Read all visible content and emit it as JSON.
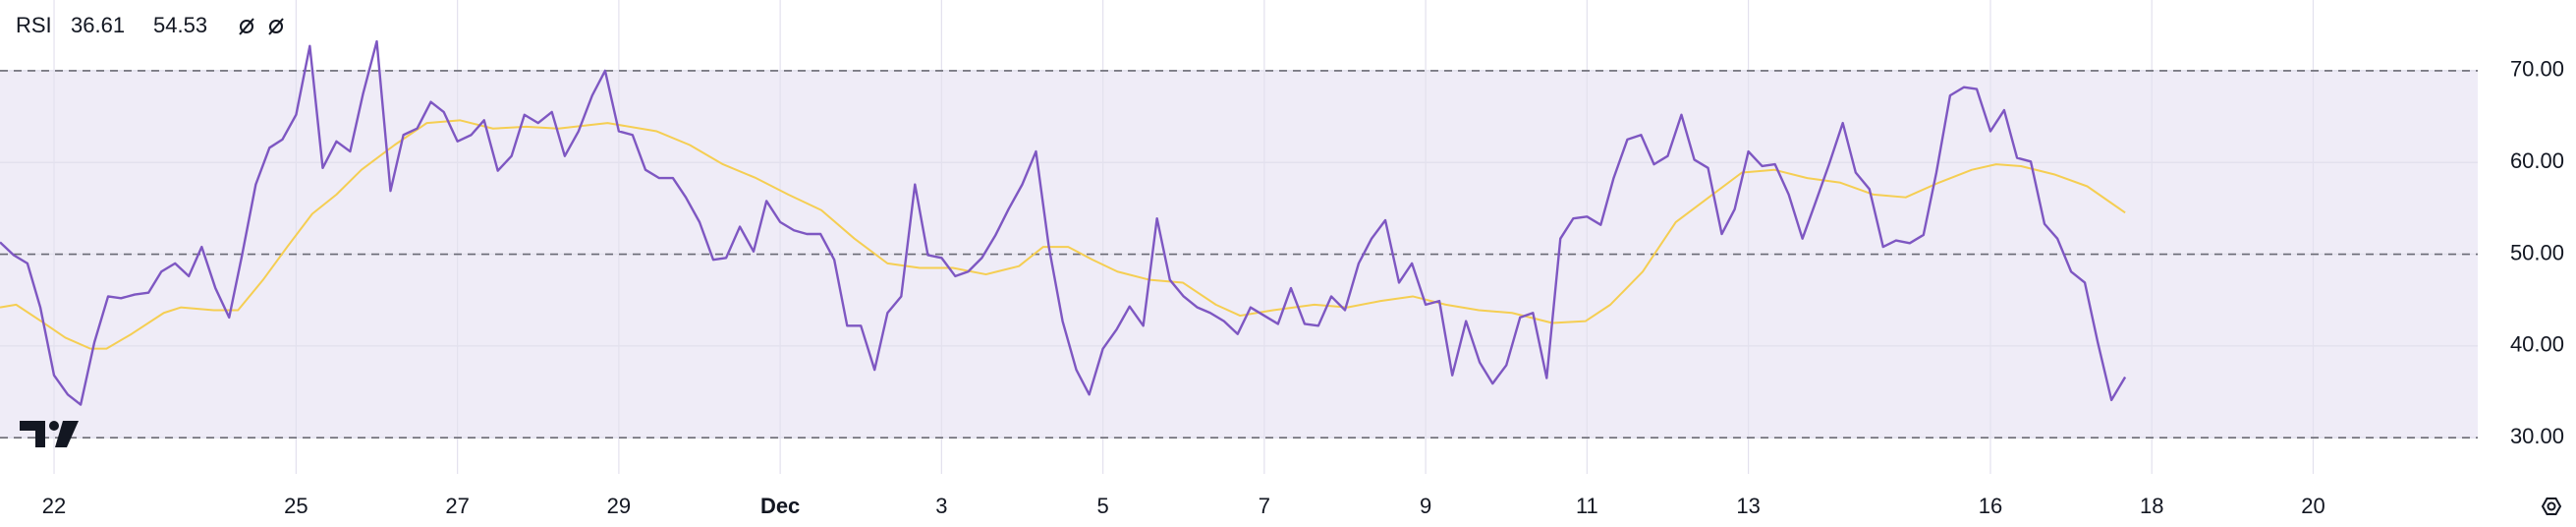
{
  "chart_data": {
    "type": "line",
    "title": "RSI",
    "xlim": [
      21.33,
      52.04
    ],
    "ylim": [
      26.05,
      77.71
    ],
    "xticks": [
      22,
      25,
      27,
      29,
      {
        "value": 31,
        "label": "Dec"
      },
      {
        "value": 33,
        "label": "3"
      },
      {
        "value": 35,
        "label": "5"
      },
      {
        "value": 37,
        "label": "7"
      },
      {
        "value": 39,
        "label": "9"
      },
      {
        "value": 41,
        "label": "11"
      },
      {
        "value": 43,
        "label": "13"
      },
      {
        "value": 46,
        "label": "16"
      },
      {
        "value": 48,
        "label": "18"
      },
      {
        "value": 50,
        "label": "20"
      }
    ],
    "yticks": [
      {
        "value": 30,
        "label": "30.00"
      },
      {
        "value": 40,
        "label": "40.00"
      },
      {
        "value": 50,
        "label": "50.00"
      },
      {
        "value": 60,
        "label": "60.00"
      },
      {
        "value": 70,
        "label": "70.00"
      }
    ],
    "band": {
      "from": 30,
      "to": 70,
      "color": "#efecf7"
    },
    "dashed_levels": [
      30,
      50,
      70
    ],
    "grid": true,
    "series": [
      {
        "color": "#7e57c2",
        "x": [
          21.33,
          21.5,
          21.67,
          21.83,
          22,
          22.17,
          22.33,
          22.5,
          22.67,
          22.83,
          23,
          23.17,
          23.33,
          23.5,
          23.67,
          23.83,
          24,
          24.17,
          24.33,
          24.5,
          24.67,
          24.83,
          25,
          25.17,
          25.33,
          25.5,
          25.67,
          25.83,
          26,
          26.17,
          26.33,
          26.5,
          26.67,
          26.83,
          27,
          27.17,
          27.33,
          27.5,
          27.67,
          27.83,
          28,
          28.17,
          28.33,
          28.5,
          28.67,
          28.83,
          29,
          29.17,
          29.33,
          29.5,
          29.67,
          29.83,
          30,
          30.17,
          30.33,
          30.5,
          30.67,
          30.83,
          31,
          31.17,
          31.33,
          31.5,
          31.67,
          31.83,
          32,
          32.17,
          32.33,
          32.5,
          32.67,
          32.83,
          33,
          33.17,
          33.33,
          33.5,
          33.67,
          33.83,
          34,
          34.17,
          34.33,
          34.5,
          34.67,
          34.83,
          35,
          35.17,
          35.33,
          35.5,
          35.67,
          35.83,
          36,
          36.17,
          36.33,
          36.5,
          36.67,
          36.83,
          37,
          37.17,
          37.33,
          37.5,
          37.67,
          37.83,
          38,
          38.17,
          38.33,
          38.5,
          38.67,
          38.83,
          39,
          39.17,
          39.33,
          39.5,
          39.67,
          39.83,
          40,
          40.17,
          40.33,
          40.5,
          40.67,
          40.83,
          41,
          41.17,
          41.33,
          41.5,
          41.67,
          41.83,
          42,
          42.17,
          42.33,
          42.5,
          42.67,
          42.83,
          43,
          43.17,
          43.33,
          43.5,
          43.67,
          43.83,
          44,
          44.17,
          44.33,
          44.5,
          44.67,
          44.83,
          45,
          45.17,
          45.33,
          45.5,
          45.67,
          45.83,
          46,
          46.17,
          46.33,
          46.5,
          46.67,
          46.83,
          47,
          47.17,
          47.33,
          47.5,
          47.67
        ],
        "values": [
          51.3,
          49.9,
          49.0,
          44.2,
          36.8,
          34.7,
          33.6,
          40.4,
          45.4,
          45.2,
          45.6,
          45.8,
          48.1,
          49.0,
          47.6,
          50.8,
          46.3,
          43.1,
          49.9,
          57.6,
          61.6,
          62.5,
          65.2,
          72.7,
          59.4,
          62.3,
          61.2,
          67.5,
          73.2,
          56.9,
          63.0,
          63.7,
          66.6,
          65.5,
          62.3,
          63.0,
          64.6,
          59.1,
          60.7,
          65.2,
          64.3,
          65.5,
          60.7,
          63.4,
          67.3,
          70.0,
          63.4,
          63.0,
          59.2,
          58.3,
          58.3,
          56.2,
          53.5,
          49.4,
          49.6,
          53.0,
          50.3,
          55.8,
          53.5,
          52.6,
          52.2,
          52.2,
          49.4,
          42.2,
          42.2,
          37.4,
          43.6,
          45.4,
          57.6,
          49.9,
          49.6,
          47.6,
          48.1,
          49.6,
          52.1,
          54.9,
          57.6,
          61.2,
          50.8,
          42.7,
          37.4,
          34.7,
          39.7,
          41.8,
          44.3,
          42.2,
          53.9,
          47.2,
          45.4,
          44.2,
          43.6,
          42.7,
          41.3,
          44.2,
          43.3,
          42.4,
          46.3,
          42.4,
          42.2,
          45.4,
          43.9,
          49.0,
          51.7,
          53.7,
          46.9,
          49.0,
          44.5,
          44.9,
          36.8,
          42.7,
          38.2,
          35.9,
          37.9,
          43.1,
          43.6,
          36.5,
          51.7,
          53.9,
          54.1,
          53.2,
          58.3,
          62.5,
          63.0,
          59.8,
          60.7,
          65.2,
          60.3,
          59.4,
          52.2,
          54.9,
          61.2,
          59.6,
          59.8,
          56.5,
          51.7,
          55.6,
          59.8,
          64.3,
          58.9,
          57.1,
          50.8,
          51.5,
          51.2,
          52.1,
          58.9,
          67.3,
          68.2,
          68.0,
          63.4,
          65.7,
          60.5,
          60.1,
          53.3,
          51.7,
          48.1,
          46.9,
          40.4,
          34.1,
          36.61
        ]
      },
      {
        "color": "#f5ce52",
        "x": [
          21.33,
          21.53,
          21.84,
          22.14,
          22.45,
          22.65,
          22.96,
          23.36,
          23.57,
          23.98,
          24.28,
          24.59,
          24.89,
          25.2,
          25.5,
          25.81,
          26.22,
          26.62,
          27.03,
          27.44,
          27.85,
          28.25,
          28.86,
          29.47,
          29.88,
          30.29,
          30.7,
          31.1,
          31.51,
          31.92,
          32.33,
          32.73,
          33.14,
          33.55,
          33.96,
          34.26,
          34.57,
          34.87,
          35.18,
          35.58,
          35.99,
          36.4,
          36.7,
          37.11,
          37.62,
          38.03,
          38.44,
          38.84,
          39.25,
          39.66,
          40.07,
          40.57,
          40.98,
          41.29,
          41.69,
          42.1,
          42.51,
          42.92,
          43.32,
          43.73,
          44.14,
          44.55,
          44.95,
          45.36,
          45.77,
          46.07,
          46.38,
          46.79,
          47.2,
          47.67
        ],
        "values": [
          44.2,
          44.5,
          42.7,
          40.9,
          39.7,
          39.7,
          41.3,
          43.6,
          44.2,
          43.9,
          43.9,
          47.2,
          50.8,
          54.4,
          56.5,
          59.2,
          61.9,
          64.3,
          64.6,
          63.7,
          63.9,
          63.7,
          64.3,
          63.4,
          61.9,
          59.8,
          58.3,
          56.5,
          54.8,
          51.7,
          49.0,
          48.5,
          48.5,
          47.8,
          48.7,
          50.8,
          50.8,
          49.4,
          48.1,
          47.2,
          46.9,
          44.5,
          43.3,
          43.9,
          44.5,
          44.2,
          44.9,
          45.4,
          44.5,
          43.9,
          43.6,
          42.5,
          42.7,
          44.5,
          48.1,
          53.5,
          56.2,
          58.9,
          59.2,
          58.3,
          57.8,
          56.5,
          56.2,
          57.8,
          59.2,
          59.8,
          59.6,
          58.7,
          57.4,
          54.53
        ]
      }
    ]
  }
}
